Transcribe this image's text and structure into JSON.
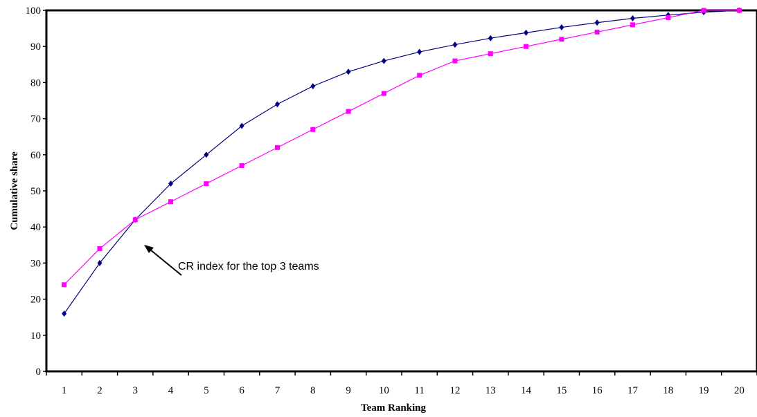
{
  "chart_data": {
    "type": "line",
    "title": "",
    "xlabel": "Team Ranking",
    "ylabel": "Cumulative share",
    "categories": [
      "1",
      "2",
      "3",
      "4",
      "5",
      "6",
      "7",
      "8",
      "9",
      "10",
      "11",
      "12",
      "13",
      "14",
      "15",
      "16",
      "17",
      "18",
      "19",
      "20"
    ],
    "ylim": [
      0,
      100
    ],
    "yticks": [
      0,
      10,
      20,
      30,
      40,
      50,
      60,
      70,
      80,
      90,
      100
    ],
    "grid": false,
    "legend": "none",
    "series": [
      {
        "color": "#000080",
        "marker": "diamond",
        "values": [
          16,
          30,
          42,
          52,
          60,
          68,
          74,
          79,
          83,
          86,
          88.5,
          90.5,
          92.3,
          93.8,
          95.3,
          96.6,
          97.8,
          98.7,
          99.5,
          100
        ]
      },
      {
        "color": "#FF00FF",
        "marker": "square",
        "values": [
          24,
          34,
          42,
          47,
          52,
          57,
          62,
          67,
          72,
          77,
          82,
          86,
          88,
          90,
          92,
          94,
          96,
          98,
          100,
          100
        ]
      }
    ],
    "annotations": [
      {
        "text": "CR index for the top 3 teams",
        "points_to": {
          "x": 3,
          "y": 42
        }
      }
    ]
  }
}
